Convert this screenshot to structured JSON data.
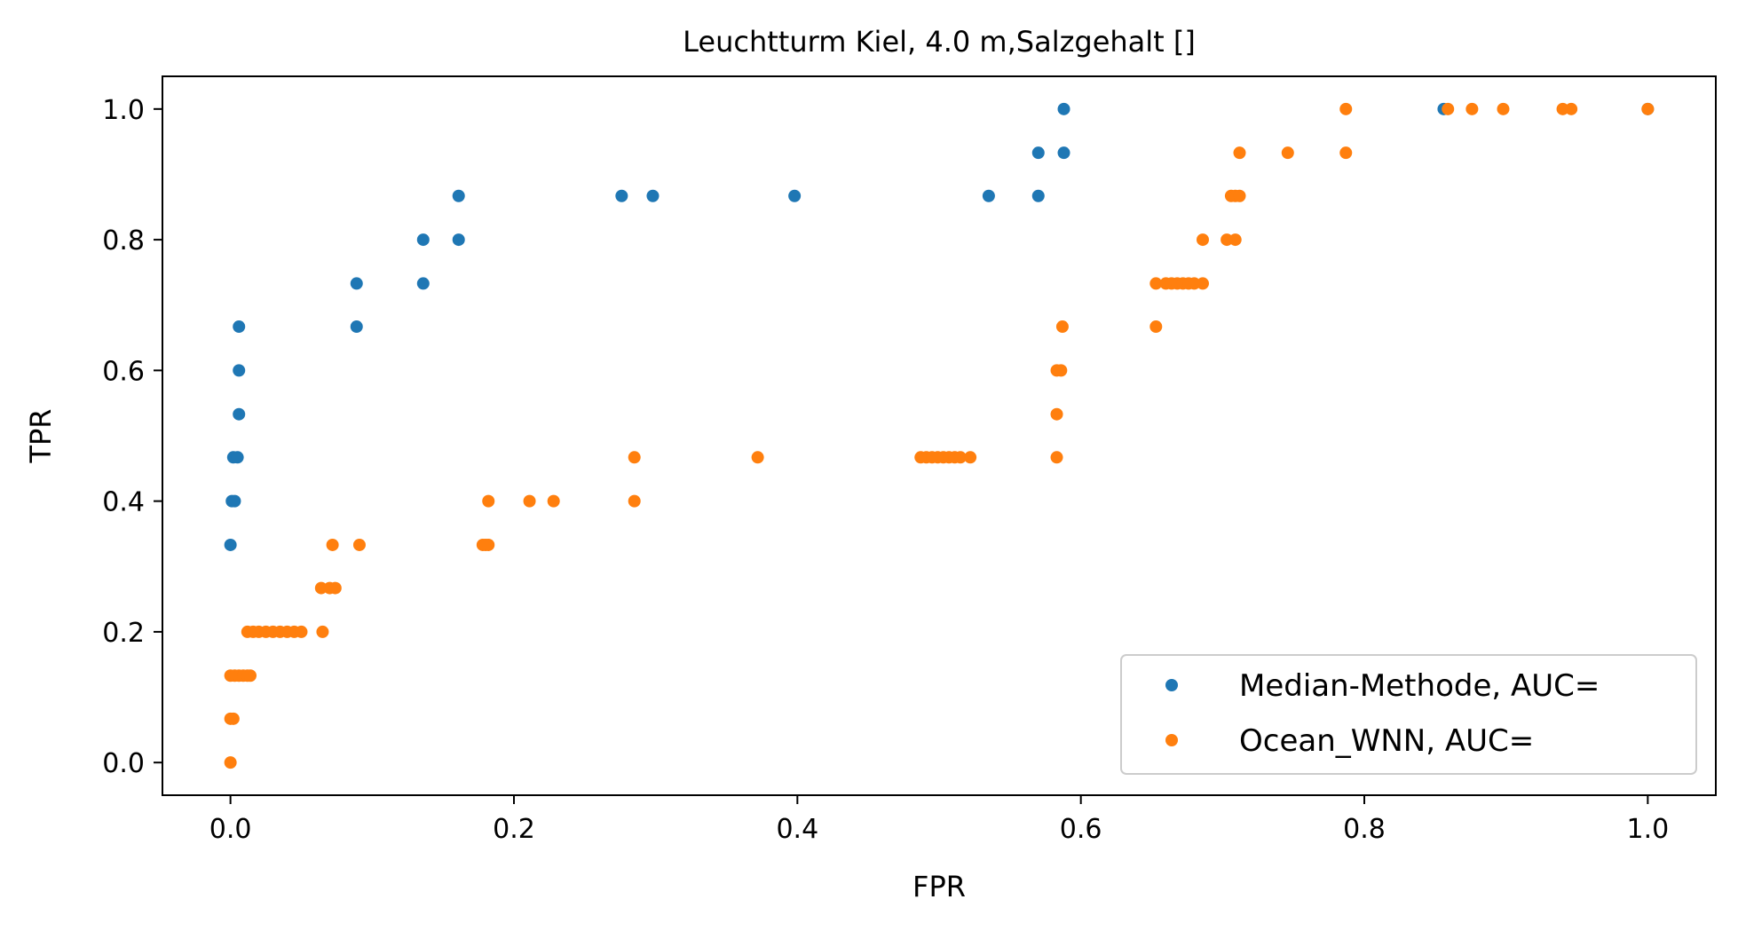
{
  "chart_data": {
    "type": "scatter",
    "title": "Leuchtturm Kiel, 4.0 m,Salzgehalt []",
    "xlabel": "FPR",
    "ylabel": "TPR",
    "xlim": [
      -0.048,
      1.048
    ],
    "ylim": [
      -0.05,
      1.05
    ],
    "xticks": [
      0.0,
      0.2,
      0.4,
      0.6,
      0.8,
      1.0
    ],
    "xtick_labels": [
      "0.0",
      "0.2",
      "0.4",
      "0.6",
      "0.8",
      "1.0"
    ],
    "yticks": [
      0.0,
      0.2,
      0.4,
      0.6,
      0.8,
      1.0
    ],
    "ytick_labels": [
      "0.0",
      "0.2",
      "0.4",
      "0.6",
      "0.8",
      "1.0"
    ],
    "grid": false,
    "legend_position": "lower-right",
    "series": [
      {
        "name": "Median-Methode, AUC=",
        "color": "#1f77b4",
        "points": [
          [
            0.0,
            0.333
          ],
          [
            0.001,
            0.4
          ],
          [
            0.003,
            0.4
          ],
          [
            0.002,
            0.467
          ],
          [
            0.005,
            0.467
          ],
          [
            0.006,
            0.533
          ],
          [
            0.006,
            0.6
          ],
          [
            0.006,
            0.667
          ],
          [
            0.089,
            0.667
          ],
          [
            0.089,
            0.733
          ],
          [
            0.136,
            0.733
          ],
          [
            0.136,
            0.8
          ],
          [
            0.161,
            0.8
          ],
          [
            0.161,
            0.867
          ],
          [
            0.276,
            0.867
          ],
          [
            0.298,
            0.867
          ],
          [
            0.398,
            0.867
          ],
          [
            0.535,
            0.867
          ],
          [
            0.57,
            0.867
          ],
          [
            0.57,
            0.933
          ],
          [
            0.588,
            0.933
          ],
          [
            0.588,
            1.0
          ],
          [
            0.856,
            1.0
          ],
          [
            1.0,
            1.0
          ]
        ]
      },
      {
        "name": "Ocean_WNN, AUC=",
        "color": "#ff7f0e",
        "points": [
          [
            0.0,
            0.0
          ],
          [
            0.0,
            0.067
          ],
          [
            0.002,
            0.067
          ],
          [
            0.0,
            0.133
          ],
          [
            0.003,
            0.133
          ],
          [
            0.006,
            0.133
          ],
          [
            0.009,
            0.133
          ],
          [
            0.012,
            0.133
          ],
          [
            0.014,
            0.133
          ],
          [
            0.012,
            0.2
          ],
          [
            0.016,
            0.2
          ],
          [
            0.02,
            0.2
          ],
          [
            0.025,
            0.2
          ],
          [
            0.03,
            0.2
          ],
          [
            0.035,
            0.2
          ],
          [
            0.04,
            0.2
          ],
          [
            0.045,
            0.2
          ],
          [
            0.05,
            0.2
          ],
          [
            0.065,
            0.2
          ],
          [
            0.064,
            0.267
          ],
          [
            0.07,
            0.267
          ],
          [
            0.074,
            0.267
          ],
          [
            0.072,
            0.333
          ],
          [
            0.091,
            0.333
          ],
          [
            0.178,
            0.333
          ],
          [
            0.18,
            0.333
          ],
          [
            0.182,
            0.333
          ],
          [
            0.182,
            0.4
          ],
          [
            0.211,
            0.4
          ],
          [
            0.228,
            0.4
          ],
          [
            0.285,
            0.4
          ],
          [
            0.285,
            0.467
          ],
          [
            0.372,
            0.467
          ],
          [
            0.487,
            0.467
          ],
          [
            0.491,
            0.467
          ],
          [
            0.495,
            0.467
          ],
          [
            0.499,
            0.467
          ],
          [
            0.503,
            0.467
          ],
          [
            0.507,
            0.467
          ],
          [
            0.511,
            0.467
          ],
          [
            0.515,
            0.467
          ],
          [
            0.522,
            0.467
          ],
          [
            0.583,
            0.467
          ],
          [
            0.583,
            0.533
          ],
          [
            0.583,
            0.6
          ],
          [
            0.586,
            0.6
          ],
          [
            0.587,
            0.667
          ],
          [
            0.653,
            0.667
          ],
          [
            0.653,
            0.733
          ],
          [
            0.66,
            0.733
          ],
          [
            0.664,
            0.733
          ],
          [
            0.668,
            0.733
          ],
          [
            0.672,
            0.733
          ],
          [
            0.676,
            0.733
          ],
          [
            0.68,
            0.733
          ],
          [
            0.686,
            0.733
          ],
          [
            0.686,
            0.8
          ],
          [
            0.703,
            0.8
          ],
          [
            0.709,
            0.8
          ],
          [
            0.706,
            0.867
          ],
          [
            0.709,
            0.867
          ],
          [
            0.712,
            0.867
          ],
          [
            0.712,
            0.933
          ],
          [
            0.746,
            0.933
          ],
          [
            0.787,
            0.933
          ],
          [
            0.787,
            1.0
          ],
          [
            0.859,
            1.0
          ],
          [
            0.876,
            1.0
          ],
          [
            0.898,
            1.0
          ],
          [
            0.94,
            1.0
          ],
          [
            0.946,
            1.0
          ],
          [
            1.0,
            1.0
          ]
        ]
      }
    ]
  }
}
